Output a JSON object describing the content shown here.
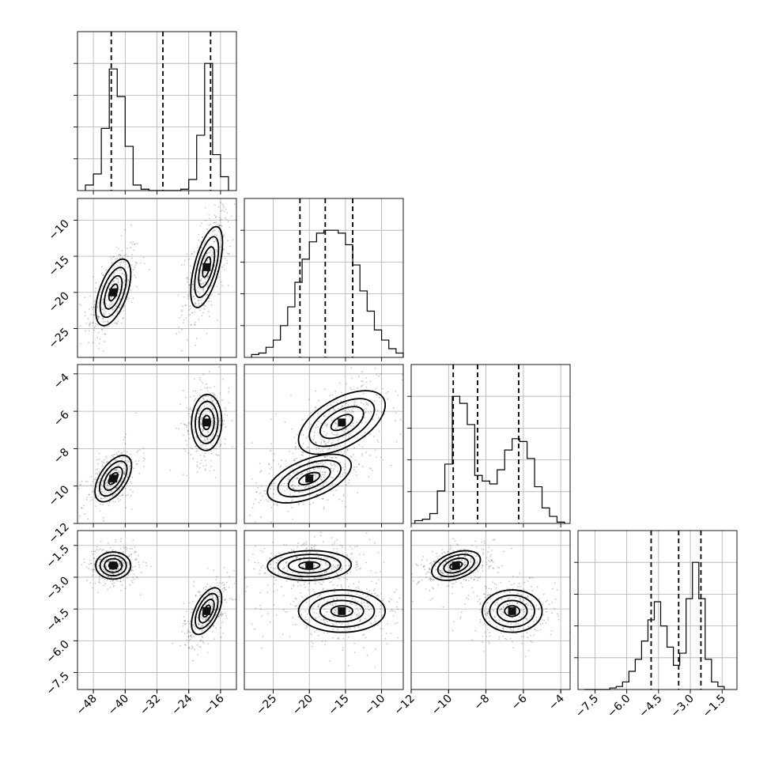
{
  "chart_data": {
    "type": "corner",
    "parameters": 4,
    "grid": true,
    "quantile_lines": "dashed",
    "axes": [
      {
        "lim": [
          -52,
          -12
        ],
        "ticks": [
          -48,
          -40,
          -32,
          -24,
          -16
        ],
        "tick_labels": [
          "−48",
          "−40",
          "−32",
          "−24",
          "−16"
        ]
      },
      {
        "lim": [
          -29,
          -7
        ],
        "ticks": [
          -25,
          -20,
          -15,
          -10
        ],
        "tick_labels": [
          "−25",
          "−20",
          "−15",
          "−10"
        ]
      },
      {
        "lim": [
          -12,
          -3.5
        ],
        "ticks": [
          -12,
          -10,
          -8,
          -6,
          -4
        ],
        "tick_labels": [
          "−12",
          "−10",
          "−8",
          "−6",
          "−4"
        ]
      },
      {
        "lim": [
          -8.3,
          -0.8
        ],
        "ticks": [
          -7.5,
          -6.0,
          -4.5,
          -3.0,
          -1.5
        ],
        "tick_labels": [
          "−7.5",
          "−6.0",
          "−4.5",
          "−3.0",
          "−1.5"
        ]
      }
    ],
    "histograms": [
      {
        "param": 0,
        "bin_edges": [
          -50,
          -48,
          -46,
          -44,
          -42,
          -40,
          -38,
          -36,
          -34,
          -32,
          -30,
          -28,
          -26,
          -24,
          -22,
          -20,
          -18,
          -16,
          -14
        ],
        "counts": [
          0.04,
          0.12,
          0.45,
          0.88,
          0.68,
          0.32,
          0.04,
          0.01,
          0,
          0,
          0,
          0,
          0.01,
          0.08,
          0.4,
          0.92,
          0.26,
          0.1
        ],
        "quantiles": [
          -43.5,
          -30.5,
          -18.5
        ]
      },
      {
        "param": 1,
        "bin_edges": [
          -28,
          -27,
          -26,
          -25,
          -24,
          -23,
          -22,
          -21,
          -20,
          -19,
          -18,
          -17,
          -16,
          -15,
          -14,
          -13,
          -12,
          -11,
          -10,
          -9,
          -8,
          -7
        ],
        "counts": [
          0.02,
          0.03,
          0.07,
          0.12,
          0.22,
          0.35,
          0.52,
          0.68,
          0.8,
          0.86,
          0.88,
          0.88,
          0.86,
          0.78,
          0.64,
          0.46,
          0.32,
          0.19,
          0.12,
          0.06,
          0.03
        ],
        "quantiles": [
          -21.3,
          -17.8,
          -14.0
        ]
      },
      {
        "param": 2,
        "bin_edges": [
          -11.8,
          -11.4,
          -11.0,
          -10.6,
          -10.2,
          -9.8,
          -9.4,
          -9.0,
          -8.6,
          -8.2,
          -7.8,
          -7.4,
          -7.0,
          -6.6,
          -6.2,
          -5.8,
          -5.4,
          -5.0,
          -4.6,
          -4.2,
          -3.8
        ],
        "counts": [
          0.02,
          0.03,
          0.07,
          0.23,
          0.42,
          0.9,
          0.85,
          0.7,
          0.34,
          0.3,
          0.28,
          0.38,
          0.52,
          0.6,
          0.58,
          0.46,
          0.26,
          0.11,
          0.05,
          0.01
        ],
        "quantiles": [
          -9.75,
          -8.45,
          -6.25
        ]
      },
      {
        "param": 3,
        "bin_edges": [
          -8.0,
          -7.7,
          -7.4,
          -7.1,
          -6.8,
          -6.5,
          -6.2,
          -5.9,
          -5.6,
          -5.3,
          -5.0,
          -4.7,
          -4.4,
          -4.1,
          -3.8,
          -3.5,
          -3.2,
          -2.9,
          -2.6,
          -2.3,
          -2.0,
          -1.7,
          -1.4
        ],
        "counts": [
          0,
          0,
          0,
          0,
          0.01,
          0.02,
          0.05,
          0.12,
          0.2,
          0.32,
          0.46,
          0.58,
          0.42,
          0.28,
          0.16,
          0.24,
          0.6,
          0.84,
          0.6,
          0.2,
          0.05,
          0.02
        ],
        "quantiles": [
          -4.85,
          -3.55,
          -2.5
        ]
      }
    ],
    "panels": [
      {
        "x": 0,
        "y": 1,
        "clusters": [
          {
            "center": [
              -43,
              -20
            ],
            "sx": 2.2,
            "sy": 2.3,
            "rho": 0.55
          },
          {
            "center": [
              -19.5,
              -16.5
            ],
            "sx": 2.0,
            "sy": 2.8,
            "rho": 0.6
          }
        ]
      },
      {
        "x": 0,
        "y": 2,
        "clusters": [
          {
            "center": [
              -43,
              -9.6
            ],
            "sx": 2.3,
            "sy": 0.62,
            "rho": 0.55
          },
          {
            "center": [
              -19.5,
              -6.6
            ],
            "sx": 1.9,
            "sy": 0.75,
            "rho": 0.05
          }
        ]
      },
      {
        "x": 0,
        "y": 3,
        "clusters": [
          {
            "center": [
              -43,
              -2.45
            ],
            "sx": 2.2,
            "sy": 0.32,
            "rho": 0.0
          },
          {
            "center": [
              -19.5,
              -4.6
            ],
            "sx": 1.9,
            "sy": 0.55,
            "rho": 0.55
          }
        ]
      },
      {
        "x": 1,
        "y": 2,
        "clusters": [
          {
            "center": [
              -20,
              -9.6
            ],
            "sx": 2.9,
            "sy": 0.65,
            "rho": 0.55
          },
          {
            "center": [
              -15.5,
              -6.6
            ],
            "sx": 3.0,
            "sy": 0.85,
            "rho": 0.55
          }
        ]
      },
      {
        "x": 1,
        "y": 3,
        "clusters": [
          {
            "center": [
              -20,
              -2.45
            ],
            "sx": 2.9,
            "sy": 0.35,
            "rho": 0.05
          },
          {
            "center": [
              -15.5,
              -4.6
            ],
            "sx": 3.0,
            "sy": 0.5,
            "rho": 0.0
          }
        ]
      },
      {
        "x": 2,
        "y": 3,
        "clusters": [
          {
            "center": [
              -9.6,
              -2.45
            ],
            "sx": 0.65,
            "sy": 0.35,
            "rho": 0.4
          },
          {
            "center": [
              -6.6,
              -4.6
            ],
            "sx": 0.8,
            "sy": 0.5,
            "rho": 0.0
          }
        ]
      }
    ]
  }
}
